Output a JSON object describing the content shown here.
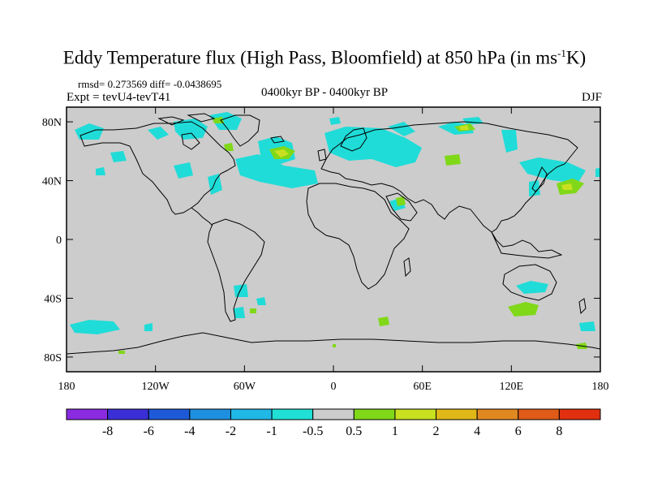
{
  "title": {
    "main": "Eddy Temperature flux (High Pass, Bloomfield) at 850 hPa (in ms",
    "sup": "-1",
    "tail": "K)"
  },
  "stats_text": "rmsd= 0.273569 diff= -0.0438695",
  "expt_text": "Expt = tevU4-tevT41",
  "period_text": "0400kyr BP - 0400kyr BP",
  "season_text": "DJF",
  "map": {
    "projection": "cylindrical-equidistant",
    "lon_range": [
      -180,
      180
    ],
    "lat_range": [
      -90,
      90
    ],
    "lat_ticks": [
      {
        "value": 80,
        "label": "80N"
      },
      {
        "value": 40,
        "label": "40N"
      },
      {
        "value": 0,
        "label": "0"
      },
      {
        "value": -40,
        "label": "40S"
      },
      {
        "value": -80,
        "label": "80S"
      }
    ],
    "lon_ticks": [
      {
        "value": -180,
        "label": "180"
      },
      {
        "value": -120,
        "label": "120W"
      },
      {
        "value": -60,
        "label": "60W"
      },
      {
        "value": 0,
        "label": "0"
      },
      {
        "value": 60,
        "label": "60E"
      },
      {
        "value": 120,
        "label": "120E"
      },
      {
        "value": 180,
        "label": "180"
      }
    ],
    "background_color": "#cccccc"
  },
  "colorbar": {
    "colors": [
      "#8a2be2",
      "#3a2fd6",
      "#1e5ad8",
      "#1f8fe0",
      "#20b8e6",
      "#20e0d6",
      "#cccccc",
      "#80d818",
      "#c8e020",
      "#e0b818",
      "#e08820",
      "#e05a18",
      "#e03010"
    ],
    "labels": [
      "-8",
      "-6",
      "-4",
      "-2",
      "-1",
      "-0.5",
      "0.5",
      "1",
      "2",
      "4",
      "6",
      "8"
    ]
  }
}
